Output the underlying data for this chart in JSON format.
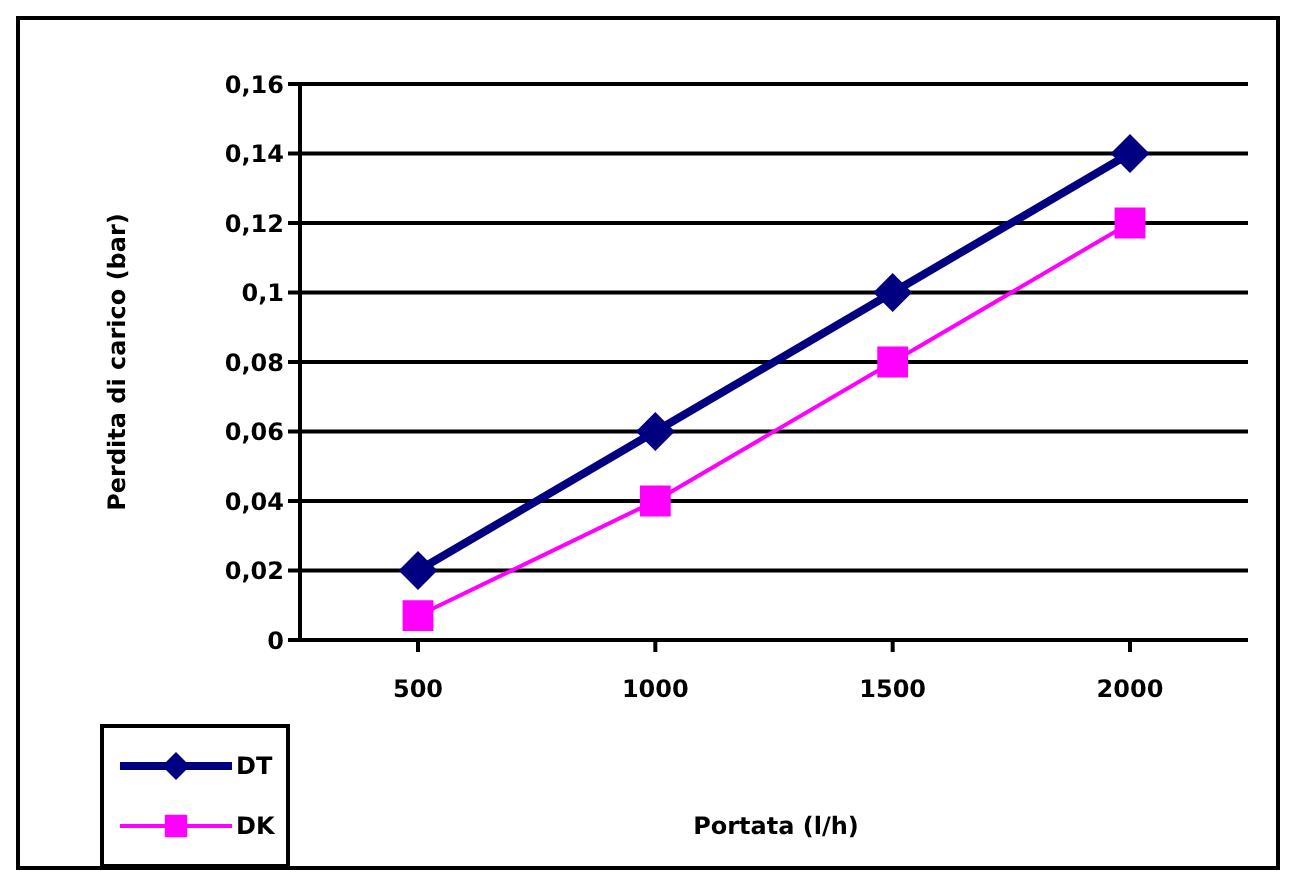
{
  "chart_data": {
    "type": "line",
    "xlabel": "Portata (l/h)",
    "ylabel": "Perdita di carico (bar)",
    "categories": [
      "500",
      "1000",
      "1500",
      "2000"
    ],
    "series": [
      {
        "name": "DT",
        "color": "#000080",
        "marker": "diamond",
        "values": [
          0.02,
          0.06,
          0.1,
          0.14
        ]
      },
      {
        "name": "DK",
        "color": "#ff00ff",
        "marker": "square",
        "values": [
          0.007,
          0.04,
          0.08,
          0.12
        ]
      }
    ],
    "ylim": [
      0,
      0.16
    ],
    "yticks": [
      0,
      {
        "value": 0.02,
        "label": "0,02"
      },
      {
        "value": 0.04,
        "label": "0,04"
      },
      {
        "value": 0.06,
        "label": "0,06"
      },
      {
        "value": 0.08,
        "label": "0,08"
      },
      {
        "value": 0.1,
        "label": "0,1"
      },
      {
        "value": 0.12,
        "label": "0,12"
      },
      {
        "value": 0.14,
        "label": "0,14"
      },
      {
        "value": 0.16,
        "label": "0,16"
      }
    ],
    "grid": "y",
    "legend": "bottom left"
  }
}
